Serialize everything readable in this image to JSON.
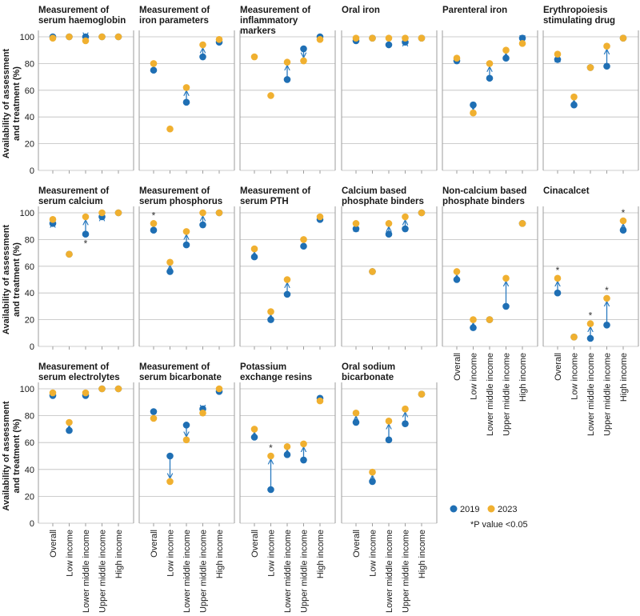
{
  "chart_data": {
    "type": "scatter",
    "subtype": "dumbbell",
    "ylabel": "Availability of assessment and treatment (%)",
    "ylim": [
      0,
      100
    ],
    "yticks": [
      0,
      20,
      40,
      60,
      80,
      100
    ],
    "categories": [
      "Overall",
      "Low income",
      "Lower middle income",
      "Upper middle income",
      "High income"
    ],
    "colors": {
      "y2019": "#1f6fb4",
      "y2023": "#f0b030",
      "arrow": "#2a7abf",
      "grid": "#bdbdbd",
      "frame": "#9e9e9e"
    },
    "legend": {
      "items": [
        "2019",
        "2023"
      ],
      "note": "*P value <0.05",
      "placement": "bottom-right"
    },
    "panels": [
      {
        "title": [
          "Measurement of",
          "serum haemoglobin"
        ],
        "y2019": [
          100,
          100,
          100,
          100,
          100
        ],
        "y2023": [
          99,
          100,
          97,
          100,
          100
        ],
        "sig": []
      },
      {
        "title": [
          "Measurement of",
          "iron parameters"
        ],
        "y2019": [
          75,
          null,
          51,
          85,
          96
        ],
        "y2023": [
          80,
          31,
          62,
          94,
          98
        ],
        "sig": []
      },
      {
        "title": [
          "Measurement of",
          "inflammatory",
          "markers"
        ],
        "y2019": [
          null,
          null,
          68,
          91,
          100
        ],
        "y2023": [
          85,
          56,
          81,
          82,
          98
        ],
        "sig": []
      },
      {
        "title": [
          "Oral iron"
        ],
        "y2019": [
          97,
          99,
          94,
          96,
          99
        ],
        "y2023": [
          99,
          99,
          99,
          99,
          99
        ],
        "sig": []
      },
      {
        "title": [
          "Parenteral iron"
        ],
        "y2019": [
          82,
          49,
          69,
          84,
          99
        ],
        "y2023": [
          84,
          43,
          80,
          90,
          95
        ],
        "sig": []
      },
      {
        "title": [
          "Erythropoiesis",
          "stimulating drug"
        ],
        "y2019": [
          83,
          49,
          77,
          78,
          99
        ],
        "y2023": [
          87,
          55,
          77,
          93,
          99
        ],
        "sig": []
      },
      {
        "title": [
          "Measurement of",
          "serum calcium"
        ],
        "y2019": [
          92,
          69,
          84,
          97,
          100
        ],
        "y2023": [
          95,
          69,
          97,
          100,
          100
        ],
        "sig": [
          2
        ]
      },
      {
        "title": [
          "Measurement of",
          "serum phosphorus"
        ],
        "y2019": [
          87,
          56,
          76,
          91,
          100
        ],
        "y2023": [
          92,
          63,
          86,
          100,
          100
        ],
        "sig": [
          0
        ]
      },
      {
        "title": [
          "Measurement of",
          "serum PTH"
        ],
        "y2019": [
          67,
          20,
          39,
          75,
          95
        ],
        "y2023": [
          73,
          26,
          50,
          80,
          97
        ],
        "sig": []
      },
      {
        "title": [
          "Calcium based",
          "phosphate binders"
        ],
        "y2019": [
          88,
          56,
          84,
          88,
          100
        ],
        "y2023": [
          92,
          56,
          92,
          97,
          100
        ],
        "sig": []
      },
      {
        "title": [
          "Non-calcium based",
          "phosphate binders"
        ],
        "y2019": [
          50,
          14,
          20,
          30,
          92
        ],
        "y2023": [
          56,
          20,
          20,
          51,
          92
        ],
        "sig": []
      },
      {
        "title": [
          "Cinacalcet"
        ],
        "y2019": [
          40,
          7,
          6,
          16,
          87
        ],
        "y2023": [
          51,
          7,
          17,
          36,
          94
        ],
        "sig": [
          0,
          2,
          3,
          4
        ]
      },
      {
        "title": [
          "Measurement of",
          "serum electrolytes"
        ],
        "y2019": [
          95,
          69,
          95,
          100,
          100
        ],
        "y2023": [
          97,
          75,
          97,
          100,
          100
        ],
        "sig": []
      },
      {
        "title": [
          "Measurement of",
          "serum bicarbonate"
        ],
        "y2019": [
          83,
          50,
          73,
          85,
          98
        ],
        "y2023": [
          78,
          31,
          62,
          82,
          100
        ],
        "sig": []
      },
      {
        "title": [
          "Potassium",
          "exchange resins"
        ],
        "y2019": [
          64,
          25,
          51,
          47,
          93
        ],
        "y2023": [
          70,
          50,
          57,
          59,
          91
        ],
        "sig": [
          1
        ]
      },
      {
        "title": [
          "Oral sodium",
          "bicarbonate"
        ],
        "y2019": [
          75,
          31,
          62,
          74,
          96
        ],
        "y2023": [
          82,
          38,
          76,
          85,
          96
        ],
        "sig": []
      }
    ]
  }
}
